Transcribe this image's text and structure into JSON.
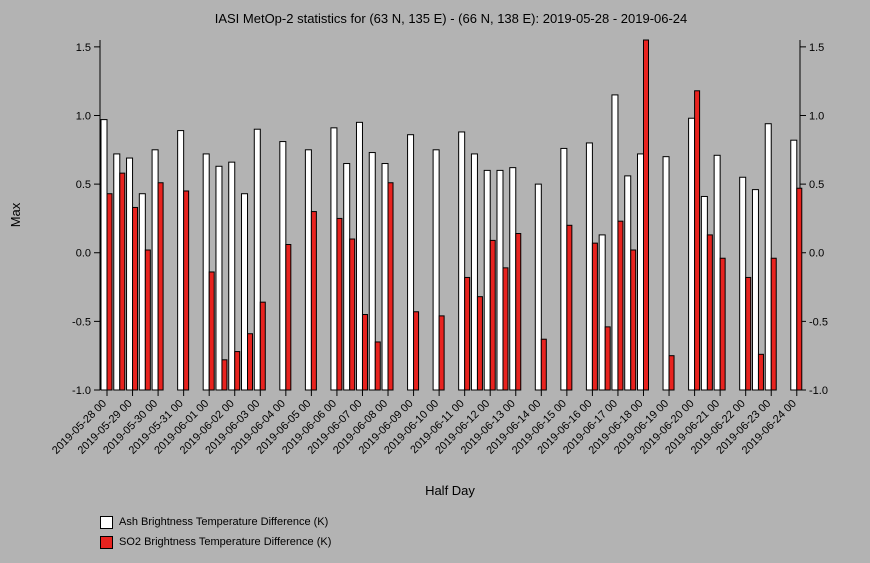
{
  "chart_data": {
    "type": "bar",
    "title": "IASI MetOp-2 statistics for (63 N, 135 E) - (66 N, 138 E): 2019-05-28 - 2019-06-24",
    "xlabel": "Half Day",
    "ylabel": "Max",
    "ylim": [
      -1.0,
      1.55
    ],
    "yticks": [
      "1.5",
      "1.0",
      "0.5",
      "0.0",
      "-0.5",
      "-1.0"
    ],
    "ytick_values": [
      1.5,
      1.0,
      0.5,
      0.0,
      -0.5,
      -1.0
    ],
    "grid": false,
    "legend_position": "bottom-left",
    "categories": [
      "2019-05-28 00",
      "2019-05-28 12",
      "2019-05-29 00",
      "2019-05-29 12",
      "2019-05-30 00",
      "2019-05-30 12",
      "2019-05-31 00",
      "2019-05-31 12",
      "2019-06-01 00",
      "2019-06-01 12",
      "2019-06-02 00",
      "2019-06-02 12",
      "2019-06-03 00",
      "2019-06-03 12",
      "2019-06-04 00",
      "2019-06-04 12",
      "2019-06-05 00",
      "2019-06-05 12",
      "2019-06-06 00",
      "2019-06-06 12",
      "2019-06-07 00",
      "2019-06-07 12",
      "2019-06-08 00",
      "2019-06-08 12",
      "2019-06-09 00",
      "2019-06-09 12",
      "2019-06-10 00",
      "2019-06-10 12",
      "2019-06-11 00",
      "2019-06-11 12",
      "2019-06-12 00",
      "2019-06-12 12",
      "2019-06-13 00",
      "2019-06-13 12",
      "2019-06-14 00",
      "2019-06-14 12",
      "2019-06-15 00",
      "2019-06-15 12",
      "2019-06-16 00",
      "2019-06-16 12",
      "2019-06-17 00",
      "2019-06-17 12",
      "2019-06-18 00",
      "2019-06-18 12",
      "2019-06-19 00",
      "2019-06-19 12",
      "2019-06-20 00",
      "2019-06-20 12",
      "2019-06-21 00",
      "2019-06-21 12",
      "2019-06-22 00",
      "2019-06-22 12",
      "2019-06-23 00",
      "2019-06-23 12",
      "2019-06-24 00"
    ],
    "xtick_labels": [
      "2019-05-28 00",
      "2019-05-29 00",
      "2019-05-30 00",
      "2019-05-31 00",
      "2019-06-01 00",
      "2019-06-02 00",
      "2019-06-03 00",
      "2019-06-04 00",
      "2019-06-05 00",
      "2019-06-06 00",
      "2019-06-07 00",
      "2019-06-08 00",
      "2019-06-09 00",
      "2019-06-10 00",
      "2019-06-11 00",
      "2019-06-12 00",
      "2019-06-13 00",
      "2019-06-14 00",
      "2019-06-15 00",
      "2019-06-16 00",
      "2019-06-17 00",
      "2019-06-18 00",
      "2019-06-19 00",
      "2019-06-20 00",
      "2019-06-21 00",
      "2019-06-22 00",
      "2019-06-23 00",
      "2019-06-24 00"
    ],
    "series": [
      {
        "name": "Ash Brightness Temperature Difference (K)",
        "color": "#ffffff",
        "values": [
          0.97,
          0.72,
          0.69,
          0.43,
          0.75,
          null,
          0.89,
          null,
          0.72,
          0.63,
          0.66,
          0.43,
          0.9,
          null,
          0.81,
          null,
          0.75,
          null,
          0.91,
          0.65,
          0.95,
          0.73,
          0.65,
          null,
          0.86,
          null,
          0.75,
          null,
          0.88,
          0.72,
          0.6,
          0.6,
          0.62,
          null,
          0.5,
          null,
          0.76,
          null,
          0.8,
          0.13,
          1.15,
          0.56,
          0.72,
          null,
          0.7,
          null,
          0.98,
          0.41,
          0.71,
          null,
          0.55,
          0.46,
          0.94,
          null,
          0.82
        ]
      },
      {
        "name": "SO2 Brightness Temperature Difference (K)",
        "color": "#e8231f",
        "values": [
          0.43,
          0.58,
          0.33,
          0.02,
          0.51,
          null,
          0.45,
          null,
          -0.14,
          -0.78,
          -0.72,
          -0.59,
          -0.36,
          null,
          0.06,
          null,
          0.3,
          null,
          0.25,
          0.1,
          -0.45,
          -0.65,
          0.51,
          null,
          -0.43,
          null,
          -0.46,
          null,
          -0.18,
          -0.32,
          0.09,
          -0.11,
          0.14,
          null,
          -0.63,
          null,
          0.2,
          null,
          0.07,
          -0.54,
          0.23,
          0.02,
          1.55,
          null,
          -0.75,
          null,
          1.18,
          0.13,
          -0.04,
          null,
          -0.18,
          -0.74,
          -0.04,
          null,
          0.47
        ]
      }
    ]
  },
  "legend": {
    "ash_label": "Ash Brightness Temperature Difference (K)",
    "so2_label": "SO2 Brightness Temperature Difference (K)",
    "ash_color": "#ffffff",
    "so2_color": "#e8231f"
  }
}
